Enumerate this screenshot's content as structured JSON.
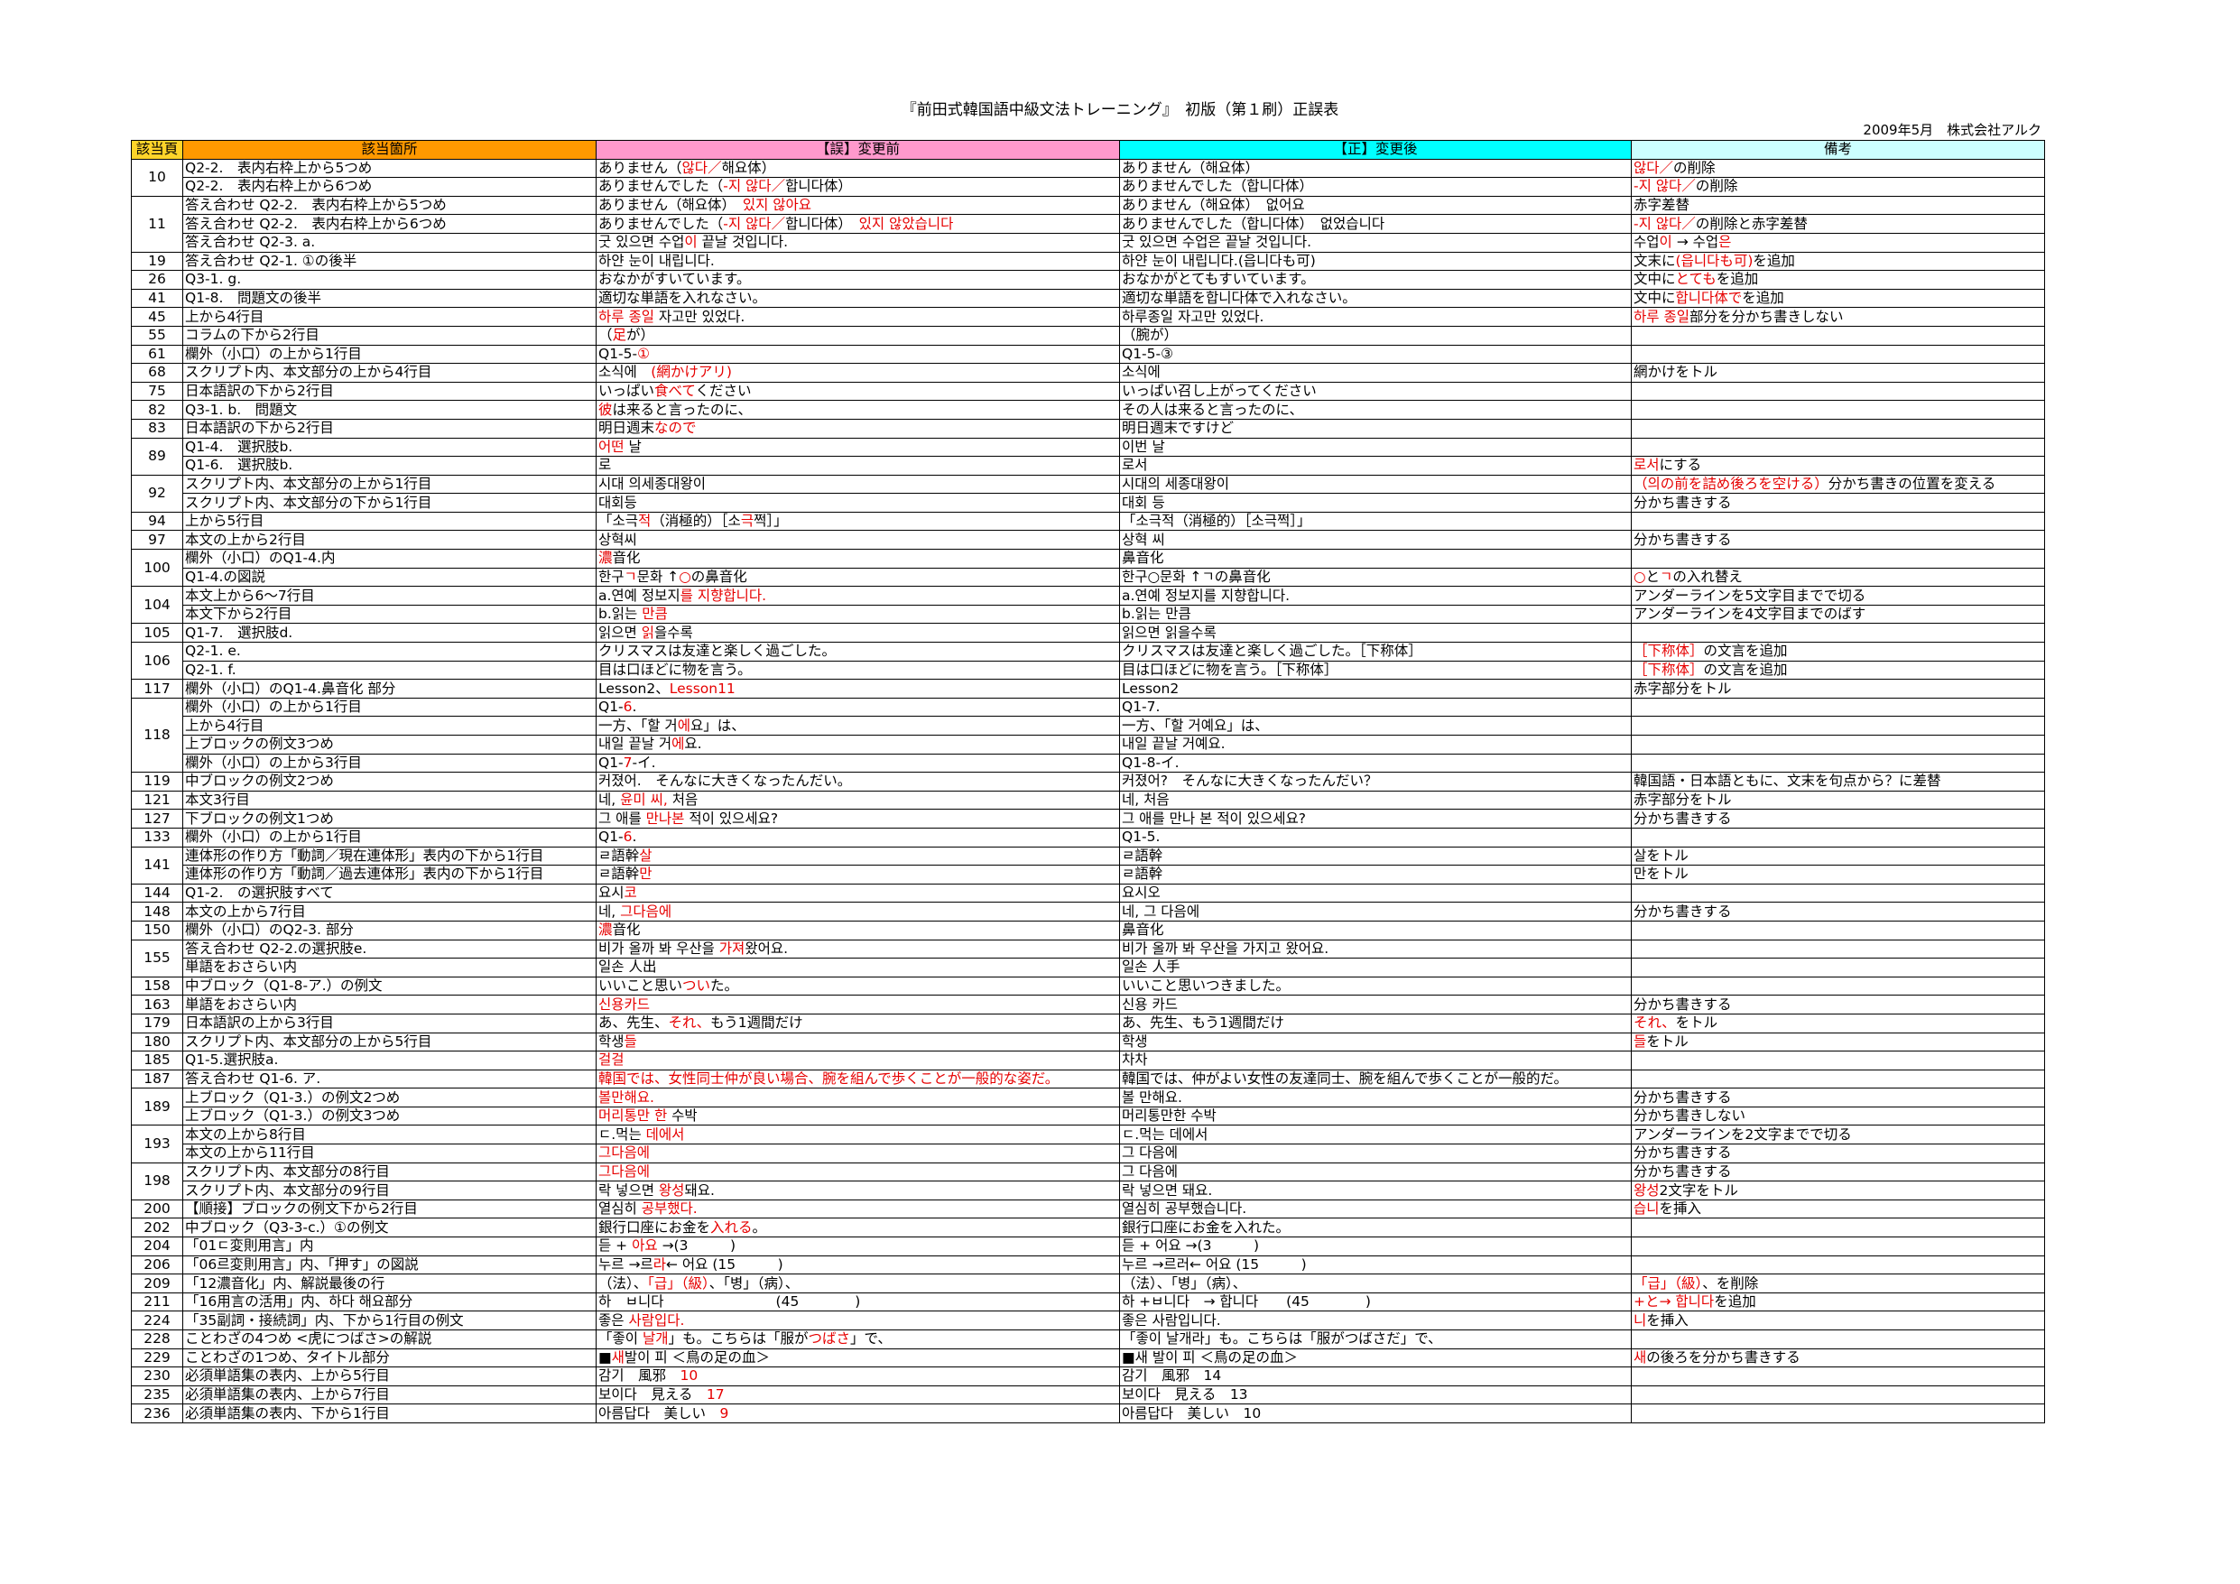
{
  "title": "『前田式韓国語中級文法トレーニング』　初版（第１刷）正誤表",
  "issuer": "2009年5月　株式会社アルク",
  "colors": {
    "red": "#e60000",
    "page_header": "#ffd42a",
    "location_header": "#ff9900",
    "before_header": "#ff99cc",
    "after_header": "#00ffff",
    "note_header": "#ccffff"
  },
  "headers": [
    "該当頁",
    "該当箇所",
    "【誤】変更前",
    "【正】変更後",
    "備考"
  ],
  "rows": [
    [
      "10",
      "Q2-2.　表内右枠上から5つめ",
      [
        [
          "ありません（"
        ],
        [
          "않다／",
          "r"
        ],
        [
          "해요体）"
        ]
      ],
      "ありません（해요体）",
      [
        [
          "않다／",
          "r"
        ],
        [
          "の削除"
        ]
      ]
    ],
    [
      "",
      "Q2-2.　表内右枠上から6つめ",
      [
        [
          "ありませんでした（"
        ],
        [
          "-지 않다／",
          "r"
        ],
        [
          "합니다体）"
        ]
      ],
      "ありませんでした（합니다体）",
      [
        [
          " -지 않다／",
          "r"
        ],
        [
          "の削除"
        ]
      ]
    ],
    [
      "11",
      "答え合わせ Q2-2.　表内右枠上から5つめ",
      [
        [
          "ありません（해요体）　"
        ],
        [
          "있지 않아요",
          "r"
        ]
      ],
      "ありません（해요体）　없어요",
      "赤字差替"
    ],
    [
      "",
      "答え合わせ Q2-2.　表内右枠上から6つめ",
      [
        [
          "ありませんでした（"
        ],
        [
          "-지 않다／",
          "r"
        ],
        [
          "합니다体）　"
        ],
        [
          "있지 않았습니다",
          "r"
        ]
      ],
      "ありませんでした（합니다体）　없었습니다",
      [
        [
          " -지 않다／",
          "r"
        ],
        [
          "の削除と赤字差替"
        ]
      ]
    ],
    [
      "",
      "答え合わせ Q2-3. a.",
      [
        [
          "굿 있으면 수업"
        ],
        [
          "이",
          "r"
        ],
        [
          " 끝날 것입니다."
        ]
      ],
      "굿 있으면 수업은 끝날 것입니다.",
      [
        [
          "수업"
        ],
        [
          "이",
          "r"
        ],
        [
          " → 수업"
        ],
        [
          "은",
          "r"
        ]
      ]
    ],
    [
      "19",
      "答え合わせ Q2-1. ①の後半",
      "하얀 눈이 내립니다.",
      "하얀 눈이 내립니다.(읍니다も可)",
      [
        [
          "文末に"
        ],
        [
          "(읍니다も可)",
          "r"
        ],
        [
          "を追加"
        ]
      ]
    ],
    [
      "26",
      "Q3-1. g.",
      "おなかがすいています。",
      "おなかがとてもすいています。",
      [
        [
          "文中に"
        ],
        [
          "とても",
          "r"
        ],
        [
          "を追加"
        ]
      ]
    ],
    [
      "41",
      "Q1-8.　問題文の後半",
      "適切な単語を入れなさい。",
      "適切な単語を합니다体で入れなさい。",
      [
        [
          "文中に"
        ],
        [
          "합니다体で",
          "r"
        ],
        [
          "を追加"
        ]
      ]
    ],
    [
      "45",
      "上から4行目",
      [
        [
          "하루 종일",
          "r"
        ],
        [
          " 자고만 있었다."
        ]
      ],
      "하루종일 자고만 있었다.",
      [
        [
          "하루 종일",
          "r"
        ],
        [
          "部分を分かち書きしない"
        ]
      ]
    ],
    [
      "55",
      "コラムの下から2行目",
      [
        [
          "（"
        ],
        [
          "足",
          "r"
        ],
        [
          "が）"
        ]
      ],
      "（腕が）",
      ""
    ],
    [
      "61",
      "欄外（小口）の上から1行目",
      [
        [
          "Q1-5-"
        ],
        [
          "①",
          "r"
        ]
      ],
      "Q1-5-③",
      ""
    ],
    [
      "68",
      "スクリプト内、本文部分の上から4行目",
      [
        [
          "소식에　"
        ],
        [
          "(網かけアリ)",
          "r"
        ]
      ],
      "소식에",
      "網かけをトル"
    ],
    [
      "75",
      "日本語訳の下から2行目",
      [
        [
          "いっぱい"
        ],
        [
          "食べて",
          "r"
        ],
        [
          "ください"
        ]
      ],
      "いっぱい召し上がってください",
      ""
    ],
    [
      "82",
      "Q3-1. b.　問題文",
      [
        [
          "彼",
          "r"
        ],
        [
          "は来ると言ったのに、"
        ]
      ],
      "その人は来ると言ったのに、",
      ""
    ],
    [
      "83",
      "日本語訳の下から2行目",
      [
        [
          "明日週末"
        ],
        [
          "なので",
          "r"
        ]
      ],
      "明日週末ですけど",
      ""
    ],
    [
      "89",
      "Q1-4.　選択肢b.",
      [
        [
          "어떤",
          "r"
        ],
        [
          " 날"
        ]
      ],
      "이번 날",
      ""
    ],
    [
      "",
      "Q1-6.　選択肢b.",
      "로",
      "로서",
      [
        [
          "로서",
          "r"
        ],
        [
          "にする"
        ]
      ]
    ],
    [
      "92",
      "スクリプト内、本文部分の上から1行目",
      "시대 의세종대왕이",
      "시대의 세종대왕이",
      [
        [
          "（의の前を詰め後ろを空ける）",
          "r"
        ],
        [
          "分かち書きの位置を変える"
        ]
      ]
    ],
    [
      "",
      "スクリプト内、本文部分の下から1行目",
      "대회등",
      "대회 등",
      "分かち書きする"
    ],
    [
      "94",
      "上から5行目",
      [
        [
          "「소극"
        ],
        [
          "적",
          "r"
        ],
        [
          "（消極的）［소"
        ],
        [
          "극",
          "r"
        ],
        [
          "쩍］」"
        ]
      ],
      "「소극적（消極的）［소극쩍］」",
      ""
    ],
    [
      "97",
      "本文の上から2行目",
      "상혁씨",
      "상혁 씨",
      "分かち書きする"
    ],
    [
      "100",
      "欄外（小口）のQ1-4.内",
      [
        [
          "濃",
          "r"
        ],
        [
          "音化"
        ]
      ],
      "鼻音化",
      ""
    ],
    [
      "",
      "Q1-4.の図説",
      [
        [
          "한구"
        ],
        [
          "ㄱ",
          "r"
        ],
        [
          "문화 ↑"
        ],
        [
          "○",
          "r"
        ],
        [
          "の鼻音化"
        ]
      ],
      "한구○문화 ↑ㄱの鼻音化",
      [
        [
          "○",
          "r"
        ],
        [
          "と"
        ],
        [
          "ㄱ",
          "r"
        ],
        [
          "の入れ替え"
        ]
      ]
    ],
    [
      "104",
      "本文上から6～7行目",
      [
        [
          "a.연예 정보지"
        ],
        [
          "를 지향합니다.",
          "r"
        ]
      ],
      "a.연예 정보지를 지향합니다.",
      "アンダーラインを5文字目までで切る"
    ],
    [
      "",
      "本文下から2行目",
      [
        [
          "b.읽는 "
        ],
        [
          "만큼",
          "r"
        ]
      ],
      "b.읽는 만큼",
      "アンダーラインを4文字目までのばす"
    ],
    [
      "105",
      "Q1-7.　選択肢d.",
      [
        [
          "읽으면 "
        ],
        [
          "읽",
          "r"
        ],
        [
          "을수록"
        ]
      ],
      "읽으면 읽을수록",
      ""
    ],
    [
      "106",
      "Q2-1. e.",
      "クリスマスは友達と楽しく過ごした。",
      "クリスマスは友達と楽しく過ごした。［下称体］",
      [
        [
          "［下称体］",
          "r"
        ],
        [
          "の文言を追加"
        ]
      ]
    ],
    [
      "",
      "Q2-1. f.",
      "目は口ほどに物を言う。",
      "目は口ほどに物を言う。［下称体］",
      [
        [
          "［下称体］",
          "r"
        ],
        [
          "の文言を追加"
        ]
      ]
    ],
    [
      "117",
      "欄外（小口）のQ1-4.鼻音化 部分",
      [
        [
          "Lesson2、"
        ],
        [
          "Lesson11",
          "r"
        ]
      ],
      "Lesson2",
      "赤字部分をトル"
    ],
    [
      "118",
      "欄外（小口）の上から1行目",
      [
        [
          "Q1-"
        ],
        [
          "6",
          "r"
        ],
        [
          "."
        ]
      ],
      "Q1-7.",
      ""
    ],
    [
      "",
      "上から4行目",
      [
        [
          "一方、「할 거"
        ],
        [
          "에",
          "r"
        ],
        [
          "요」は、"
        ]
      ],
      "一方、「할 거예요」は、",
      ""
    ],
    [
      "",
      "上ブロックの例文3つめ",
      [
        [
          "내일 끝날 거"
        ],
        [
          "에",
          "r"
        ],
        [
          "요."
        ]
      ],
      "내일 끝날 거예요.",
      ""
    ],
    [
      "",
      "欄外（小口）の上から3行目",
      [
        [
          "Q1-"
        ],
        [
          "7",
          "r"
        ],
        [
          "-イ."
        ]
      ],
      "Q1-8-イ.",
      ""
    ],
    [
      "119",
      "中ブロックの例文2つめ",
      "커졌어.　そんなに大きくなったんだい。",
      "커졌어?　そんなに大きくなったんだい？",
      "韓国語・日本語ともに、文末を句点から？に差替"
    ],
    [
      "121",
      "本文3行目",
      [
        [
          "네, "
        ],
        [
          "윤미 씨,",
          "r"
        ],
        [
          " 처음"
        ]
      ],
      "네, 처음",
      "赤字部分をトル"
    ],
    [
      "127",
      "下ブロックの例文1つめ",
      [
        [
          "그 애를 "
        ],
        [
          "만나본",
          "r"
        ],
        [
          " 적이 있으세요?"
        ]
      ],
      "그 애를 만나 본 적이 있으세요?",
      "分かち書きする"
    ],
    [
      "133",
      "欄外（小口）の上から1行目",
      [
        [
          "Q1-"
        ],
        [
          "6",
          "r"
        ],
        [
          "."
        ]
      ],
      "Q1-5.",
      ""
    ],
    [
      "141",
      "連体形の作り方「動詞／現在連体形」表内の下から1行目",
      [
        [
          "ㄹ語幹"
        ],
        [
          "살",
          "r"
        ]
      ],
      "ㄹ語幹",
      "살をトル"
    ],
    [
      "",
      "連体形の作り方「動詞／過去連体形」表内の下から1行目",
      [
        [
          "ㄹ語幹"
        ],
        [
          "만",
          "r"
        ]
      ],
      "ㄹ語幹",
      "만をトル"
    ],
    [
      "144",
      "Q1-2.　の選択肢すべて",
      [
        [
          "요시"
        ],
        [
          "코",
          "r"
        ]
      ],
      "요시오",
      ""
    ],
    [
      "148",
      "本文の上から7行目",
      [
        [
          "네, "
        ],
        [
          "그다음에",
          "r"
        ]
      ],
      "네, 그 다음에",
      "分かち書きする"
    ],
    [
      "150",
      "欄外（小口）のQ2-3. 部分",
      [
        [
          "濃",
          "r"
        ],
        [
          "音化"
        ]
      ],
      "鼻音化",
      ""
    ],
    [
      "155",
      "答え合わせ Q2-2.の選択肢e.",
      [
        [
          "비가 올까 봐 우산을 "
        ],
        [
          "가져",
          "r"
        ],
        [
          "왔어요."
        ]
      ],
      "비가 올까 봐 우산을 가지고 왔어요.",
      ""
    ],
    [
      "",
      "単語をおさらい内",
      "일손 人出",
      "일손 人手",
      ""
    ],
    [
      "158",
      "中ブロック（Q1-8-ア.）の例文",
      [
        [
          "いいこと思い"
        ],
        [
          "つい",
          "r"
        ],
        [
          "た。"
        ]
      ],
      "いいこと思いつきました。",
      ""
    ],
    [
      "163",
      "単語をおさらい内",
      [
        [
          "신용카드",
          "r"
        ]
      ],
      "신용 카드",
      "分かち書きする"
    ],
    [
      "179",
      "日本語訳の上から3行目",
      [
        [
          "あ、先生、"
        ],
        [
          "それ、",
          "r"
        ],
        [
          "もう1週間だけ"
        ]
      ],
      "あ、先生、もう1週間だけ",
      [
        [
          "それ、",
          "r"
        ],
        [
          "をトル"
        ]
      ]
    ],
    [
      "180",
      "スクリプト内、本文部分の上から5行目",
      [
        [
          "학생"
        ],
        [
          "들",
          "r"
        ]
      ],
      "학생",
      [
        [
          "들",
          "r"
        ],
        [
          "をトル"
        ]
      ]
    ],
    [
      "185",
      "Q1-5.選択肢a.",
      [
        [
          "걸걸",
          "r"
        ]
      ],
      "차차",
      ""
    ],
    [
      "187",
      "答え合わせ Q1-6. ア.",
      [
        [
          "韓国では、女性同士仲が良い場合、腕を組んで歩くことが一般的な姿だ。",
          "r"
        ]
      ],
      "韓国では、仲がよい女性の友達同士、腕を組んで歩くことが一般的だ。",
      ""
    ],
    [
      "189",
      "上ブロック（Q1-3.）の例文2つめ",
      [
        [
          "볼만해요.",
          "r"
        ]
      ],
      "볼 만해요.",
      "分かち書きする"
    ],
    [
      "",
      "上ブロック（Q1-3.）の例文3つめ",
      [
        [
          "머리통만 한",
          "r"
        ],
        [
          " 수박"
        ]
      ],
      "머리통만한 수박",
      "分かち書きしない"
    ],
    [
      "193",
      "本文の上から8行目",
      [
        [
          "ㄷ.먹는 "
        ],
        [
          "데에서",
          "r"
        ]
      ],
      "ㄷ.먹는 데에서",
      "アンダーラインを2文字までで切る"
    ],
    [
      "",
      "本文の上から11行目",
      [
        [
          "그다음에",
          "r"
        ]
      ],
      "그 다음에",
      "分かち書きする"
    ],
    [
      "198",
      "スクリプト内、本文部分の8行目",
      [
        [
          "그다음에",
          "r"
        ]
      ],
      "그 다음에",
      "分かち書きする"
    ],
    [
      "",
      "スクリプト内、本文部分の9行目",
      [
        [
          "락 넣으면 "
        ],
        [
          "왕성",
          "r"
        ],
        [
          "돼요."
        ]
      ],
      "락 넣으면 돼요.",
      [
        [
          "왕성",
          "r"
        ],
        [
          "2文字をトル"
        ]
      ]
    ],
    [
      "200",
      "【順接】ブロックの例文下から2行目",
      [
        [
          "열심히 "
        ],
        [
          "공부했다.",
          "r"
        ]
      ],
      "열심히 공부했습니다.",
      [
        [
          "습니",
          "r"
        ],
        [
          "を挿入"
        ]
      ]
    ],
    [
      "202",
      "中ブロック（Q3-3-c.）①の例文",
      [
        [
          "銀行口座にお金を"
        ],
        [
          "入れる",
          "r"
        ],
        [
          "。"
        ]
      ],
      "銀行口座にお金を入れた。",
      ""
    ],
    [
      "204",
      "「01ㄷ変則用言」内",
      [
        [
          "듣 + "
        ],
        [
          "아요",
          "r"
        ],
        [
          " →(3　　　)"
        ]
      ],
      "듣 + 어요 →(3　　　)",
      ""
    ],
    [
      "206",
      "「06르変則用言」内、「押す」の図説",
      [
        [
          "누르 →르"
        ],
        [
          "라",
          "r"
        ],
        [
          "← 어요 (15　　　)"
        ]
      ],
      "누르 →르러← 어요 (15　　　)",
      ""
    ],
    [
      "209",
      "「12濃音化」内、解説最後の行",
      [
        [
          "（法）、"
        ],
        [
          "「급」（級）",
          "r"
        ],
        [
          "、「병」（病）、"
        ]
      ],
      "（法）、「병」（病）、",
      [
        [
          "「급」（級）",
          "r"
        ],
        [
          "、を削除"
        ]
      ]
    ],
    [
      "211",
      "「16用言の活用」内、하다 해요部分",
      "하　ㅂ니다　　　　　　　　(45　　　　)",
      "하 +ㅂ니다　→ 합니다　　(45　　　　)",
      [
        [
          "+と→ 합니다",
          "r"
        ],
        [
          "を追加"
        ]
      ]
    ],
    [
      "224",
      "「35副詞・接続詞」内、下から1行目の例文",
      [
        [
          "좋은 "
        ],
        [
          "사람입다.",
          "r"
        ]
      ],
      "좋은 사람입니다.",
      [
        [
          "니",
          "r"
        ],
        [
          "を挿入"
        ]
      ]
    ],
    [
      "228",
      "ことわざの4つめ <虎につばさ>の解説",
      [
        [
          "「좋이 "
        ],
        [
          "날개",
          "r"
        ],
        [
          "」も。こちらは「服が"
        ],
        [
          "つばさ",
          "r"
        ],
        [
          "」で、"
        ]
      ],
      "「좋이 날개라」も。こちらは「服がつばさだ」で、",
      ""
    ],
    [
      "229",
      "ことわざの1つめ、タイトル部分",
      [
        [
          "■"
        ],
        [
          "새",
          "r"
        ],
        [
          "발이 피 ＜鳥の足の血＞"
        ]
      ],
      "■새 발이 피 ＜鳥の足の血＞",
      [
        [
          "새",
          "r"
        ],
        [
          "の後ろを分かち書きする"
        ]
      ]
    ],
    [
      "230",
      "必須単語集の表内、上から5行目",
      [
        [
          "감기　風邪　"
        ],
        [
          "10",
          "r"
        ]
      ],
      "감기　風邪　14",
      ""
    ],
    [
      "235",
      "必須単語集の表内、上から7行目",
      [
        [
          "보이다　見える　"
        ],
        [
          "17",
          "r"
        ]
      ],
      "보이다　見える　13",
      ""
    ],
    [
      "236",
      "必須単語集の表内、下から1行目",
      [
        [
          "아름답다　美しい　"
        ],
        [
          "9",
          "r"
        ]
      ],
      "아름답다　美しい　10",
      ""
    ]
  ]
}
